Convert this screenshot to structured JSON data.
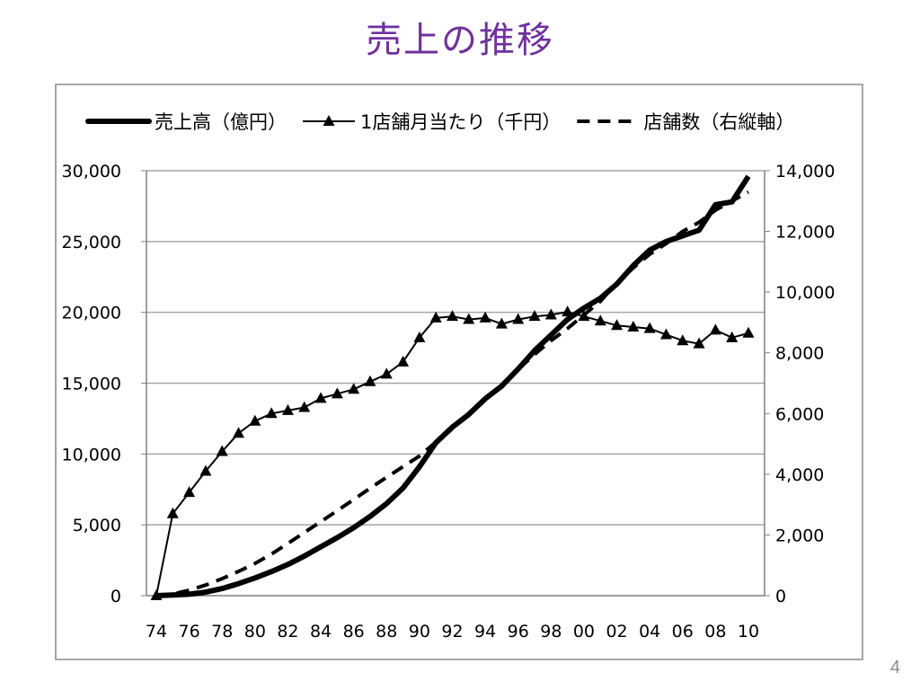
{
  "slide": {
    "title": "売上の推移",
    "page_number": "4"
  },
  "colors": {
    "title": "#7030A0",
    "series": "#000000",
    "grid": "#a6a6a6"
  },
  "chart_data": {
    "type": "line",
    "grid": true,
    "legend_position": "top",
    "x": [
      "74",
      "75",
      "76",
      "77",
      "78",
      "79",
      "80",
      "81",
      "82",
      "83",
      "84",
      "85",
      "86",
      "87",
      "88",
      "89",
      "90",
      "91",
      "92",
      "93",
      "94",
      "95",
      "96",
      "97",
      "98",
      "99",
      "00",
      "01",
      "02",
      "03",
      "04",
      "05",
      "06",
      "07",
      "08",
      "09",
      "10"
    ],
    "x_tick_labels": [
      "74",
      "76",
      "78",
      "80",
      "82",
      "84",
      "86",
      "88",
      "90",
      "92",
      "94",
      "96",
      "98",
      "00",
      "02",
      "04",
      "06",
      "08",
      "10"
    ],
    "y_left": {
      "min": 0,
      "max": 30000,
      "ticks": [
        "0",
        "5,000",
        "10,000",
        "15,000",
        "20,000",
        "25,000",
        "30,000"
      ]
    },
    "y_right": {
      "min": 0,
      "max": 14000,
      "ticks": [
        "0",
        "2,000",
        "4,000",
        "6,000",
        "8,000",
        "10,000",
        "12,000",
        "14,000"
      ]
    },
    "series": [
      {
        "name": "売上高（億円）",
        "axis": "left",
        "style": "thick-solid",
        "values": [
          0,
          50,
          100,
          250,
          500,
          850,
          1250,
          1700,
          2200,
          2800,
          3450,
          4100,
          4800,
          5600,
          6500,
          7600,
          9100,
          10800,
          11900,
          12800,
          13900,
          14800,
          16000,
          17300,
          18400,
          19500,
          20300,
          21000,
          22000,
          23300,
          24400,
          25000,
          25400,
          25800,
          27600,
          27800,
          29600
        ]
      },
      {
        "name": "1店舗月当たり（千円）",
        "axis": "right",
        "style": "triangle-markers",
        "values": [
          0,
          2700,
          3400,
          4100,
          4750,
          5350,
          5750,
          6000,
          6100,
          6200,
          6500,
          6650,
          6800,
          7050,
          7300,
          7700,
          8500,
          9150,
          9200,
          9100,
          9150,
          8950,
          9100,
          9200,
          9250,
          9350,
          9200,
          9050,
          8900,
          8850,
          8800,
          8600,
          8400,
          8300,
          8750,
          8500,
          8650
        ]
      },
      {
        "name": "店舗数（右縦軸）",
        "axis": "right",
        "style": "dashed",
        "values": [
          0,
          50,
          180,
          350,
          560,
          800,
          1060,
          1370,
          1720,
          2080,
          2440,
          2800,
          3170,
          3540,
          3900,
          4250,
          4600,
          5060,
          5500,
          5970,
          6450,
          6950,
          7450,
          7950,
          8400,
          8800,
          9250,
          9700,
          10300,
          10800,
          11250,
          11600,
          12000,
          12300,
          12700,
          13000,
          13300
        ]
      }
    ]
  }
}
